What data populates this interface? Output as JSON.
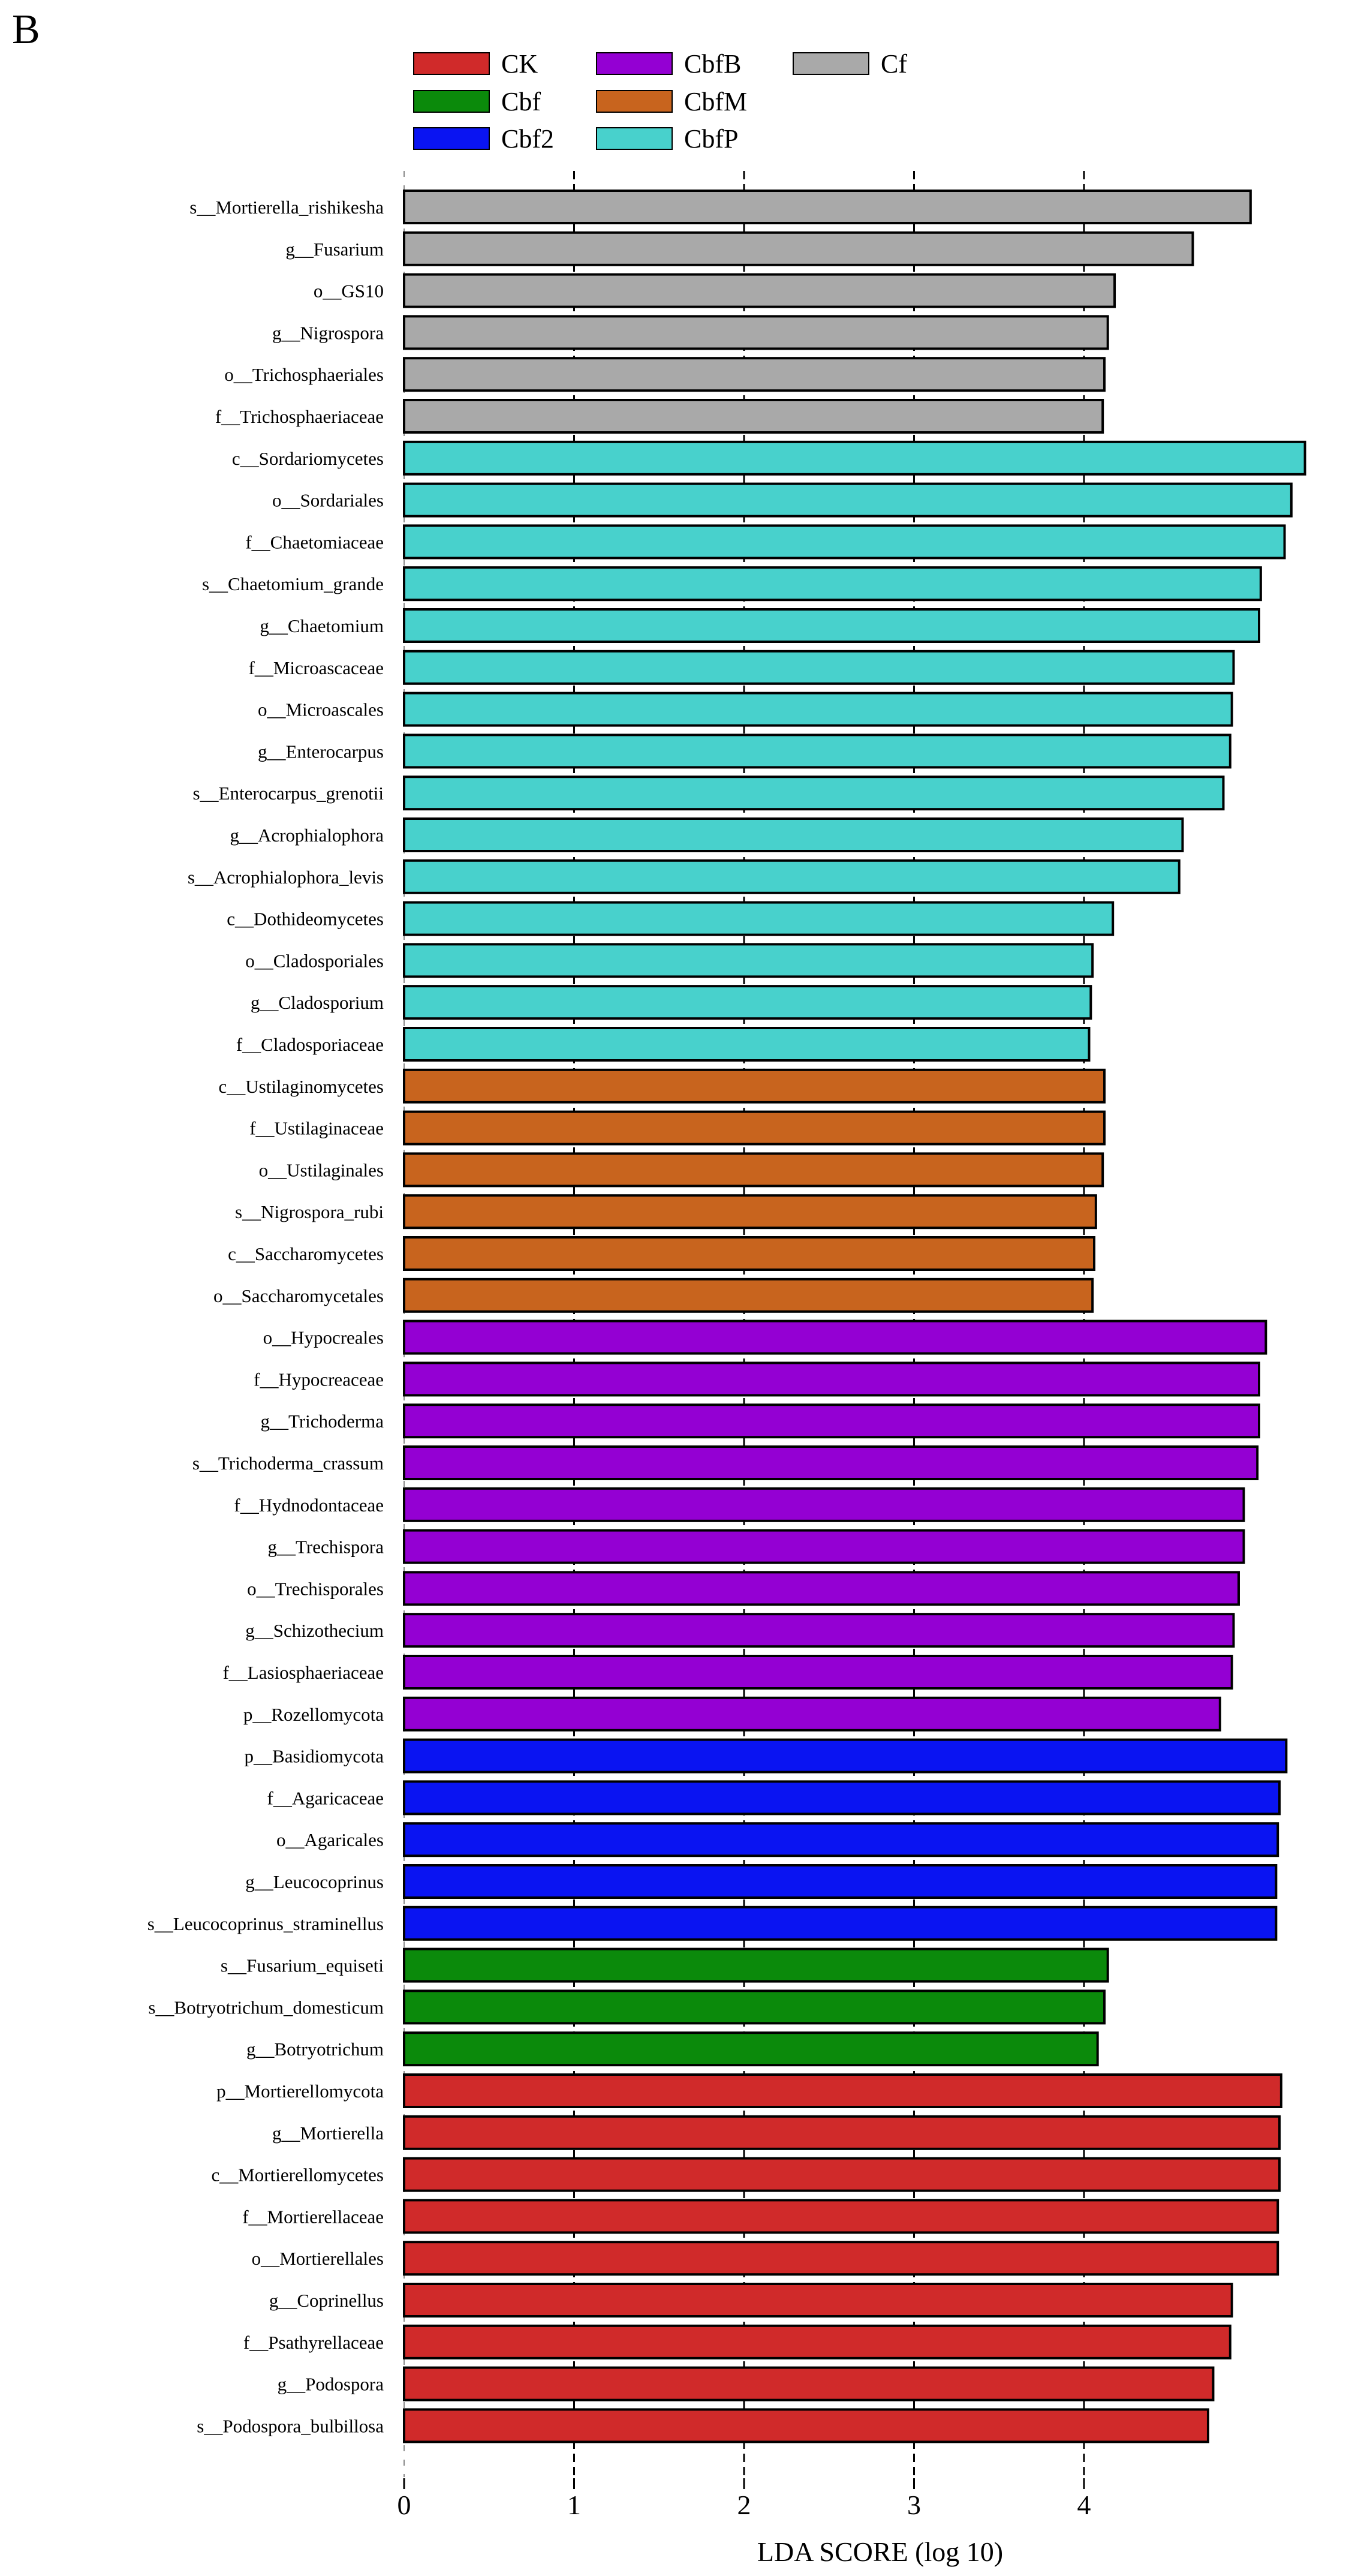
{
  "chart_data": {
    "panel_label": "B",
    "type": "bar",
    "orientation": "horizontal",
    "xlabel": "LDA SCORE (log 10)",
    "xlim": [
      0,
      5.3
    ],
    "xticks": [
      0,
      1,
      2,
      3,
      4
    ],
    "groups": [
      {
        "name": "CK",
        "color": "#d02a2a"
      },
      {
        "name": "Cbf",
        "color": "#0b8a0b"
      },
      {
        "name": "Cbf2",
        "color": "#0a14f2"
      },
      {
        "name": "CbfB",
        "color": "#9400d3"
      },
      {
        "name": "CbfM",
        "color": "#c8641e"
      },
      {
        "name": "CbfP",
        "color": "#48d1cc"
      },
      {
        "name": "Cf",
        "color": "#a9a9a9"
      }
    ],
    "bars": [
      {
        "label": "s__Mortierella_rishikesha",
        "value": 4.98,
        "group": "Cf"
      },
      {
        "label": "g__Fusarium",
        "value": 4.64,
        "group": "Cf"
      },
      {
        "label": "o__GS10",
        "value": 4.18,
        "group": "Cf"
      },
      {
        "label": "g__Nigrospora",
        "value": 4.14,
        "group": "Cf"
      },
      {
        "label": "o__Trichosphaeriales",
        "value": 4.12,
        "group": "Cf"
      },
      {
        "label": "f__Trichosphaeriaceae",
        "value": 4.11,
        "group": "Cf"
      },
      {
        "label": "c__Sordariomycetes",
        "value": 5.3,
        "group": "CbfP"
      },
      {
        "label": "o__Sordariales",
        "value": 5.22,
        "group": "CbfP"
      },
      {
        "label": "f__Chaetomiaceae",
        "value": 5.18,
        "group": "CbfP"
      },
      {
        "label": "s__Chaetomium_grande",
        "value": 5.04,
        "group": "CbfP"
      },
      {
        "label": "g__Chaetomium",
        "value": 5.03,
        "group": "CbfP"
      },
      {
        "label": "f__Microascaceae",
        "value": 4.88,
        "group": "CbfP"
      },
      {
        "label": "o__Microascales",
        "value": 4.87,
        "group": "CbfP"
      },
      {
        "label": "g__Enterocarpus",
        "value": 4.86,
        "group": "CbfP"
      },
      {
        "label": "s__Enterocarpus_grenotii",
        "value": 4.82,
        "group": "CbfP"
      },
      {
        "label": "g__Acrophialophora",
        "value": 4.58,
        "group": "CbfP"
      },
      {
        "label": "s__Acrophialophora_levis",
        "value": 4.56,
        "group": "CbfP"
      },
      {
        "label": "c__Dothideomycetes",
        "value": 4.17,
        "group": "CbfP"
      },
      {
        "label": "o__Cladosporiales",
        "value": 4.05,
        "group": "CbfP"
      },
      {
        "label": "g__Cladosporium",
        "value": 4.04,
        "group": "CbfP"
      },
      {
        "label": "f__Cladosporiaceae",
        "value": 4.03,
        "group": "CbfP"
      },
      {
        "label": "c__Ustilaginomycetes",
        "value": 4.12,
        "group": "CbfM"
      },
      {
        "label": "f__Ustilaginaceae",
        "value": 4.12,
        "group": "CbfM"
      },
      {
        "label": "o__Ustilaginales",
        "value": 4.11,
        "group": "CbfM"
      },
      {
        "label": "s__Nigrospora_rubi",
        "value": 4.07,
        "group": "CbfM"
      },
      {
        "label": "c__Saccharomycetes",
        "value": 4.06,
        "group": "CbfM"
      },
      {
        "label": "o__Saccharomycetales",
        "value": 4.05,
        "group": "CbfM"
      },
      {
        "label": "o__Hypocreales",
        "value": 5.07,
        "group": "CbfB"
      },
      {
        "label": "f__Hypocreaceae",
        "value": 5.03,
        "group": "CbfB"
      },
      {
        "label": "g__Trichoderma",
        "value": 5.03,
        "group": "CbfB"
      },
      {
        "label": "s__Trichoderma_crassum",
        "value": 5.02,
        "group": "CbfB"
      },
      {
        "label": "f__Hydnodontaceae",
        "value": 4.94,
        "group": "CbfB"
      },
      {
        "label": "g__Trechispora",
        "value": 4.94,
        "group": "CbfB"
      },
      {
        "label": "o__Trechisporales",
        "value": 4.91,
        "group": "CbfB"
      },
      {
        "label": "g__Schizothecium",
        "value": 4.88,
        "group": "CbfB"
      },
      {
        "label": "f__Lasiosphaeriaceae",
        "value": 4.87,
        "group": "CbfB"
      },
      {
        "label": "p__Rozellomycota",
        "value": 4.8,
        "group": "CbfB"
      },
      {
        "label": "p__Basidiomycota",
        "value": 5.19,
        "group": "Cbf2"
      },
      {
        "label": "f__Agaricaceae",
        "value": 5.15,
        "group": "Cbf2"
      },
      {
        "label": "o__Agaricales",
        "value": 5.14,
        "group": "Cbf2"
      },
      {
        "label": "g__Leucocoprinus",
        "value": 5.13,
        "group": "Cbf2"
      },
      {
        "label": "s__Leucocoprinus_straminellus",
        "value": 5.13,
        "group": "Cbf2"
      },
      {
        "label": "s__Fusarium_equiseti",
        "value": 4.14,
        "group": "Cbf"
      },
      {
        "label": "s__Botryotrichum_domesticum",
        "value": 4.12,
        "group": "Cbf"
      },
      {
        "label": "g__Botryotrichum",
        "value": 4.08,
        "group": "Cbf"
      },
      {
        "label": "p__Mortierellomycota",
        "value": 5.16,
        "group": "CK"
      },
      {
        "label": "g__Mortierella",
        "value": 5.15,
        "group": "CK"
      },
      {
        "label": "c__Mortierellomycetes",
        "value": 5.15,
        "group": "CK"
      },
      {
        "label": "f__Mortierellaceae",
        "value": 5.14,
        "group": "CK"
      },
      {
        "label": "o__Mortierellales",
        "value": 5.14,
        "group": "CK"
      },
      {
        "label": "g__Coprinellus",
        "value": 4.87,
        "group": "CK"
      },
      {
        "label": "f__Psathyrellaceae",
        "value": 4.86,
        "group": "CK"
      },
      {
        "label": "g__Podospora",
        "value": 4.76,
        "group": "CK"
      },
      {
        "label": "s__Podospora_bulbillosa",
        "value": 4.73,
        "group": "CK"
      }
    ]
  }
}
